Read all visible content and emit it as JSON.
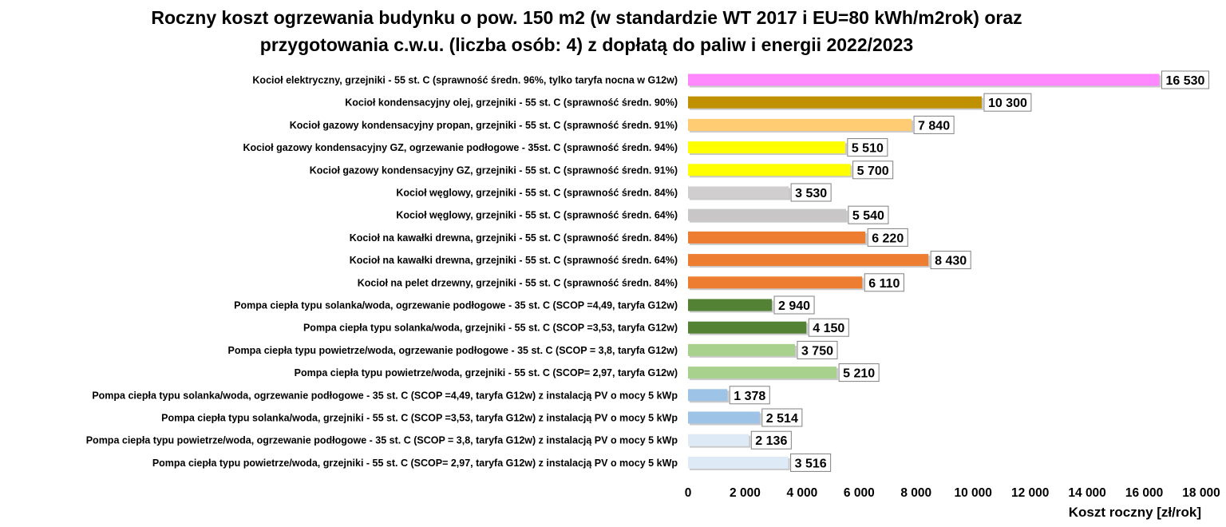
{
  "chart_data": {
    "type": "bar",
    "orientation": "horizontal",
    "title": [
      "Roczny koszt ogrzewania budynku  o pow. 150 m2 (w standardzie WT 2017 i EU=80 kWh/m2rok) oraz",
      "przygotowania c.w.u. (liczba osób: 4) z dopłatą do paliw i energii 2022/2023"
    ],
    "xlabel": "Koszt roczny [zł/rok]",
    "xlim": [
      0,
      18000
    ],
    "ticks": [
      0,
      2000,
      4000,
      6000,
      8000,
      10000,
      12000,
      14000,
      16000,
      18000
    ],
    "tick_labels": [
      "0",
      "2 000",
      "4 000",
      "6 000",
      "8 000",
      "10 000",
      "12 000",
      "14 000",
      "16 000",
      "18 000"
    ],
    "grid": false,
    "bars": [
      {
        "label": "Kocioł  elektryczny,  grzejniki - 55 st. C  (sprawność średn. 96%, tylko taryfa nocna w G12w)",
        "value": 16530,
        "value_label": "16 530",
        "color": "#ff88ff"
      },
      {
        "label": "Kocioł  kondensacyjny olej,  grzejniki - 55 st. C  (sprawność średn. 90%)",
        "value": 10300,
        "value_label": "10 300",
        "color": "#bf9000"
      },
      {
        "label": "Kocioł gazowy kondensacyjny propan, grzejniki - 55 st. C  (sprawność średn. 91%)",
        "value": 7840,
        "value_label": "7 840",
        "color": "#ffcc73"
      },
      {
        "label": "Kocioł gazowy kondensacyjny GZ, ogrzewanie podłogowe - 35st. C  (sprawność średn. 94%)",
        "value": 5510,
        "value_label": "5 510",
        "color": "#ffff00"
      },
      {
        "label": "Kocioł gazowy kondensacyjny GZ, grzejniki - 55 st. C  (sprawność średn. 91%)",
        "value": 5700,
        "value_label": "5 700",
        "color": "#ffff00"
      },
      {
        "label": "Kocioł węglowy,  grzejniki - 55 st. C  (sprawność średn. 84%)",
        "value": 3530,
        "value_label": "3 530",
        "color": "#d0cece"
      },
      {
        "label": "Kocioł węglowy,  grzejniki - 55 st. C  (sprawność średn. 64%)",
        "value": 5540,
        "value_label": "5 540",
        "color": "#c8c6c6"
      },
      {
        "label": "Kocioł na kawałki drewna, grzejniki - 55 st. C (sprawność średn. 84%)",
        "value": 6220,
        "value_label": "6 220",
        "color": "#ed7d31"
      },
      {
        "label": "Kocioł na kawałki drewna, grzejniki - 55 st. C  (sprawność średn. 64%)",
        "value": 8430,
        "value_label": "8 430",
        "color": "#ed7d31"
      },
      {
        "label": "Kocioł na pelet drzewny, grzejniki - 55 st. C (sprawność średn. 84%)",
        "value": 6110,
        "value_label": "6 110",
        "color": "#ed7d31"
      },
      {
        "label": "Pompa ciepła typu solanka/woda, ogrzewanie podłogowe - 35 st. C  (SCOP =4,49, taryfa G12w)",
        "value": 2940,
        "value_label": "2 940",
        "color": "#548235"
      },
      {
        "label": "Pompa ciepła typu solanka/woda, grzejniki - 55 st. C (SCOP =3,53, taryfa G12w)",
        "value": 4150,
        "value_label": "4 150",
        "color": "#548235"
      },
      {
        "label": "Pompa ciepła typu powietrze/woda, ogrzewanie podłogowe - 35 st. C (SCOP = 3,8, taryfa G12w)",
        "value": 3750,
        "value_label": "3 750",
        "color": "#a9d18e"
      },
      {
        "label": "Pompa ciepła typu powietrze/woda, grzejniki - 55 st. C (SCOP= 2,97, taryfa G12w)",
        "value": 5210,
        "value_label": "5 210",
        "color": "#a9d18e"
      },
      {
        "label": "Pompa ciepła typu solanka/woda, ogrzewanie podłogowe - 35 st. C  (SCOP =4,49, taryfa G12w) z instalacją PV o mocy 5 kWp",
        "value": 1378,
        "value_label": "1 378",
        "color": "#9dc3e6"
      },
      {
        "label": "Pompa ciepła typu solanka/woda, grzejniki - 55 st. C (SCOP =3,53, taryfa G12w) z instalacją PV o mocy 5 kWp",
        "value": 2514,
        "value_label": "2 514",
        "color": "#9dc3e6"
      },
      {
        "label": "Pompa ciepła typu powietrze/woda, ogrzewanie podłogowe - 35 st. C (SCOP = 3,8, taryfa G12w) z instalacją PV o mocy 5 kWp",
        "value": 2136,
        "value_label": "2 136",
        "color": "#deebf7"
      },
      {
        "label": "Pompa ciepła typu powietrze/woda, grzejniki - 55 st. C (SCOP= 2,97, taryfa G12w) z instalacją PV o mocy 5 kWp",
        "value": 3516,
        "value_label": "3 516",
        "color": "#deebf7"
      }
    ]
  }
}
